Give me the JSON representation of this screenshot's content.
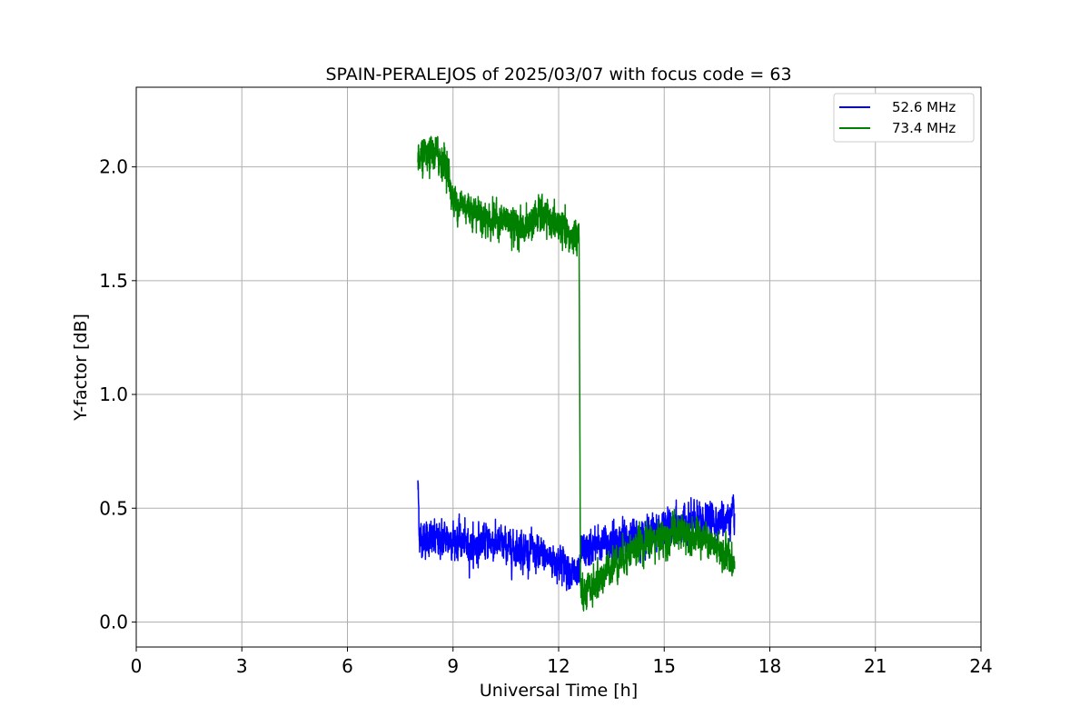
{
  "chart_data": {
    "type": "line",
    "title": "SPAIN-PERALEJOS of 2025/03/07 with focus code = 63",
    "xlabel": "Universal Time [h]",
    "ylabel": "Y-factor [dB]",
    "xlim": [
      0,
      24
    ],
    "ylim": [
      -0.11,
      2.35
    ],
    "xticks": [
      0,
      3,
      6,
      9,
      12,
      15,
      18,
      21,
      24
    ],
    "xtick_labels": [
      "0",
      "3",
      "6",
      "9",
      "12",
      "15",
      "18",
      "21",
      "24"
    ],
    "yticks": [
      0.0,
      0.5,
      1.0,
      1.5,
      2.0
    ],
    "ytick_labels": [
      "0.0",
      "0.5",
      "1.0",
      "1.5",
      "2.0"
    ],
    "grid": true,
    "legend_position": "top-right",
    "series": [
      {
        "name": "52.6 MHz",
        "color": "#0000ff",
        "x": [
          8.0,
          8.05,
          8.5,
          9.0,
          9.5,
          10.0,
          10.5,
          11.0,
          11.5,
          12.0,
          12.3,
          12.55,
          12.6,
          12.65,
          13.0,
          13.5,
          14.0,
          14.5,
          15.0,
          15.5,
          16.0,
          16.5,
          17.0
        ],
        "y": [
          0.61,
          0.37,
          0.36,
          0.37,
          0.33,
          0.36,
          0.33,
          0.32,
          0.29,
          0.27,
          0.23,
          0.19,
          0.21,
          0.31,
          0.33,
          0.35,
          0.37,
          0.39,
          0.41,
          0.43,
          0.44,
          0.45,
          0.46
        ],
        "noise": 0.07
      },
      {
        "name": "73.4 MHz",
        "color": "#008000",
        "x": [
          8.0,
          8.5,
          8.8,
          9.0,
          9.5,
          10.0,
          10.5,
          11.0,
          11.5,
          12.0,
          12.3,
          12.58,
          12.62,
          12.65,
          13.0,
          13.5,
          14.0,
          14.5,
          15.0,
          15.5,
          16.0,
          16.5,
          17.0
        ],
        "y": [
          2.02,
          2.06,
          2.02,
          1.85,
          1.82,
          1.77,
          1.76,
          1.73,
          1.79,
          1.74,
          1.69,
          1.71,
          0.18,
          0.1,
          0.16,
          0.25,
          0.31,
          0.35,
          0.37,
          0.4,
          0.37,
          0.32,
          0.27
        ],
        "noise": 0.07
      }
    ]
  }
}
